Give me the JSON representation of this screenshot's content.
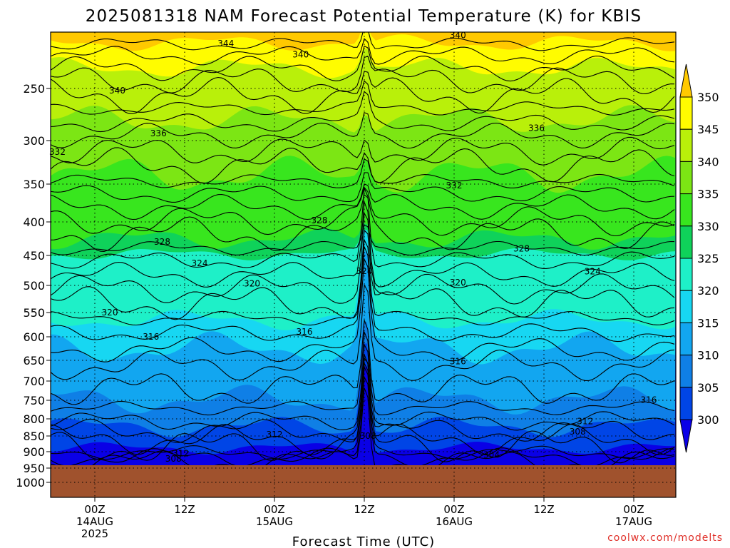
{
  "chart_data": {
    "type": "heatmap",
    "title": "2025081318 NAM Forecast Potential Temperature (K) for KBIS",
    "xlabel": "Forecast Time (UTC)",
    "ylabel": "",
    "y_ticks": [
      250,
      300,
      350,
      400,
      450,
      500,
      550,
      600,
      650,
      700,
      750,
      800,
      850,
      900,
      950,
      1000
    ],
    "x_ticks": [
      {
        "line1": "00Z",
        "line2": "14AUG",
        "line3": "2025"
      },
      {
        "line1": "12Z",
        "line2": "",
        "line3": ""
      },
      {
        "line1": "00Z",
        "line2": "15AUG",
        "line3": ""
      },
      {
        "line1": "12Z",
        "line2": "",
        "line3": ""
      },
      {
        "line1": "00Z",
        "line2": "16AUG",
        "line3": ""
      },
      {
        "line1": "12Z",
        "line2": "",
        "line3": ""
      },
      {
        "line1": "00Z",
        "line2": "17AUG",
        "line3": ""
      }
    ],
    "colorbar": {
      "levels": [
        300,
        305,
        310,
        315,
        320,
        325,
        330,
        335,
        340,
        345,
        350
      ],
      "colors": [
        "#0a00e6",
        "#0045e6",
        "#0f7fe6",
        "#12a6f0",
        "#17d7f2",
        "#1ef0c8",
        "#0fd25a",
        "#38e61e",
        "#7ce614",
        "#b9f00a",
        "#fffc00",
        "#ffc900"
      ]
    },
    "contour_labels": [
      {
        "text": "344",
        "x_hours": 17.5,
        "p_hpa": 210
      },
      {
        "text": "340",
        "x_hours": 27.5,
        "p_hpa": 220
      },
      {
        "text": "340",
        "x_hours": 48.5,
        "p_hpa": 203
      },
      {
        "text": "340",
        "x_hours": 3,
        "p_hpa": 252
      },
      {
        "text": "336",
        "x_hours": 8.5,
        "p_hpa": 293
      },
      {
        "text": "336",
        "x_hours": 59,
        "p_hpa": 288
      },
      {
        "text": "332",
        "x_hours": -5,
        "p_hpa": 313
      },
      {
        "text": "332",
        "x_hours": 48,
        "p_hpa": 352
      },
      {
        "text": "328",
        "x_hours": 9,
        "p_hpa": 430
      },
      {
        "text": "328",
        "x_hours": 30,
        "p_hpa": 398
      },
      {
        "text": "328",
        "x_hours": 57,
        "p_hpa": 440
      },
      {
        "text": "324",
        "x_hours": 14,
        "p_hpa": 463
      },
      {
        "text": "324",
        "x_hours": 36,
        "p_hpa": 476
      },
      {
        "text": "324",
        "x_hours": 66.5,
        "p_hpa": 477
      },
      {
        "text": "320",
        "x_hours": 2,
        "p_hpa": 550
      },
      {
        "text": "320",
        "x_hours": 21,
        "p_hpa": 497
      },
      {
        "text": "320",
        "x_hours": 48.5,
        "p_hpa": 495
      },
      {
        "text": "316",
        "x_hours": 7.5,
        "p_hpa": 600
      },
      {
        "text": "316",
        "x_hours": 28,
        "p_hpa": 590
      },
      {
        "text": "316",
        "x_hours": 48.5,
        "p_hpa": 653
      },
      {
        "text": "316",
        "x_hours": 74,
        "p_hpa": 749
      },
      {
        "text": "312",
        "x_hours": 24,
        "p_hpa": 846
      },
      {
        "text": "312",
        "x_hours": 65.5,
        "p_hpa": 807
      },
      {
        "text": "312",
        "x_hours": 11.5,
        "p_hpa": 905
      },
      {
        "text": "308",
        "x_hours": 10.5,
        "p_hpa": 922
      },
      {
        "text": "308",
        "x_hours": 36.5,
        "p_hpa": 850
      },
      {
        "text": "308",
        "x_hours": 64.5,
        "p_hpa": 837
      },
      {
        "text": "304",
        "x_hours": 53,
        "p_hpa": 910
      }
    ],
    "terrain_surface_hpa": 945,
    "grid": "dotted"
  },
  "credit": "coolwx.com/modelts"
}
